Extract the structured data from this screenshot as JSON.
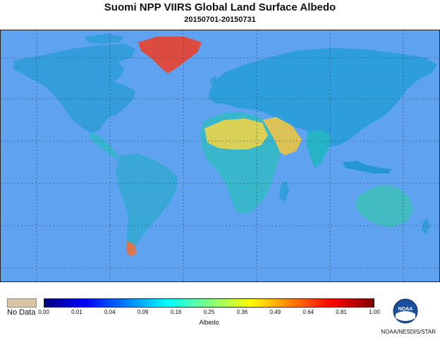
{
  "title": "Suomi NPP VIIRS Global Land Surface Albedo",
  "subtitle": "20150701-20150731",
  "legend": {
    "no_data_label": "No Data",
    "no_data_color": "#d9c4a8",
    "colorbar_label": "Albedo",
    "ticks": [
      "0.00",
      "0.01",
      "0.04",
      "0.09",
      "0.16",
      "0.25",
      "0.36",
      "0.49",
      "0.64",
      "0.81",
      "1.00"
    ],
    "colors": [
      "#000080",
      "#0000ff",
      "#0080ff",
      "#00ffff",
      "#80ff80",
      "#ffff00",
      "#ff8000",
      "#ff0000",
      "#800000"
    ]
  },
  "logo_text": "NOAA",
  "credit": "NOAA/NESDIS/STAR",
  "map": {
    "ocean_color": "#5fa3f0",
    "grid_color": "#2c3e50",
    "land_color": "#3aa8e6"
  }
}
